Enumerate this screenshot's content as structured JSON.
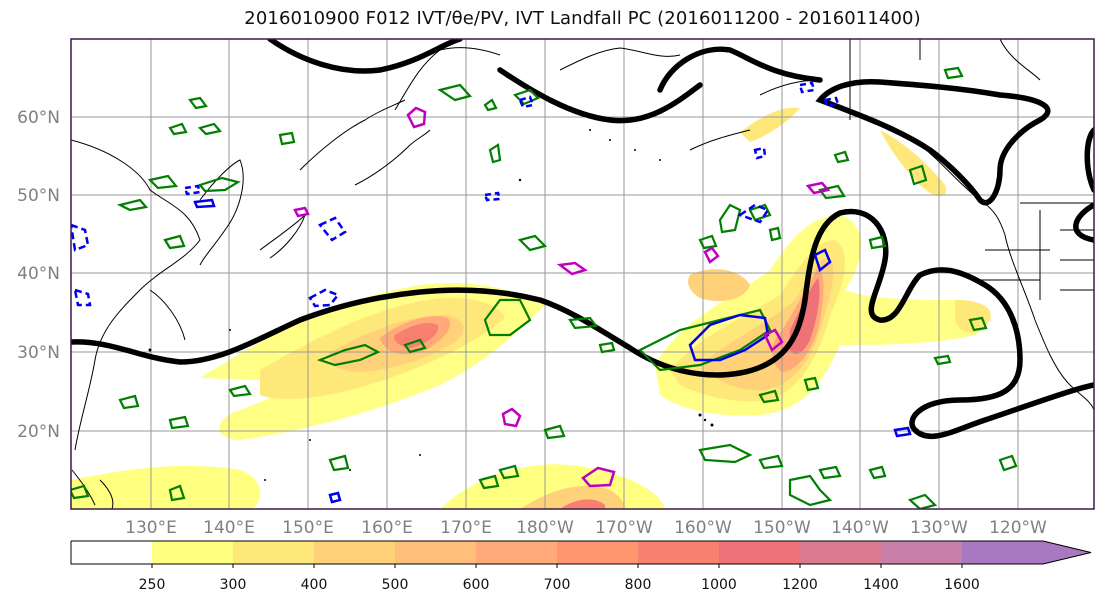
{
  "title": "2016010900 F012 IVT/θe/PV, IVT Landfall PC (2016011200 - 2016011400)",
  "map": {
    "lat_labels": [
      "60°N",
      "50°N",
      "40°N",
      "30°N",
      "20°N"
    ],
    "lon_labels": [
      "130°E",
      "140°E",
      "150°E",
      "160°E",
      "170°E",
      "180°W",
      "170°W",
      "160°W",
      "150°W",
      "140°W",
      "130°W",
      "120°W"
    ],
    "label_color": "#808080",
    "grid_color": "#999999",
    "frame_color": "#3a1a4a"
  },
  "colorbar": {
    "ticks": [
      "250",
      "300",
      "400",
      "500",
      "600",
      "700",
      "800",
      "1000",
      "1200",
      "1400",
      "1600"
    ],
    "colors": [
      "#ffff80",
      "#ffe87a",
      "#ffd27a",
      "#ffbe7a",
      "#ffaa78",
      "#ff9670",
      "#f88070",
      "#ee7278",
      "#dd7a90",
      "#c880a8",
      "#a878c0"
    ]
  },
  "contour_colors": {
    "ivt_shading": "#ffd070",
    "theta_e": "#000000",
    "pv_green": "#007f00",
    "pv_blue": "#0000ee",
    "pv_magenta": "#c000c0"
  }
}
